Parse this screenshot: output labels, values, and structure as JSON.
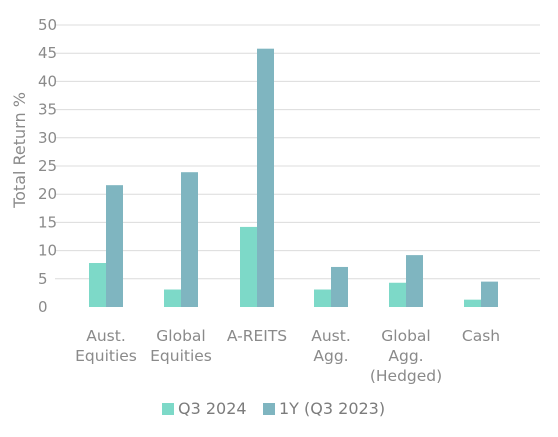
{
  "chart_data": {
    "type": "bar",
    "title": "",
    "xlabel": "",
    "ylabel": "Total Return %",
    "ylim": [
      0,
      50
    ],
    "yticks": [
      0,
      5,
      10,
      15,
      20,
      25,
      30,
      35,
      40,
      45,
      50
    ],
    "grid": true,
    "legend_position": "bottom",
    "categories": [
      [
        "Aust.",
        "Equities"
      ],
      [
        "Global",
        "Equities"
      ],
      [
        "A-REITS"
      ],
      [
        "Aust.",
        "Agg."
      ],
      [
        "Global",
        "Agg.",
        "(Hedged)"
      ],
      [
        "Cash"
      ]
    ],
    "series": [
      {
        "name": "Q3 2024",
        "color": "#7dd9c8",
        "values": [
          7.8,
          3.1,
          14.2,
          3.1,
          4.3,
          1.3
        ]
      },
      {
        "name": "1Y (Q3 2023)",
        "color": "#7fb5c0",
        "values": [
          21.6,
          23.9,
          45.8,
          7.1,
          9.2,
          4.5
        ]
      }
    ]
  }
}
